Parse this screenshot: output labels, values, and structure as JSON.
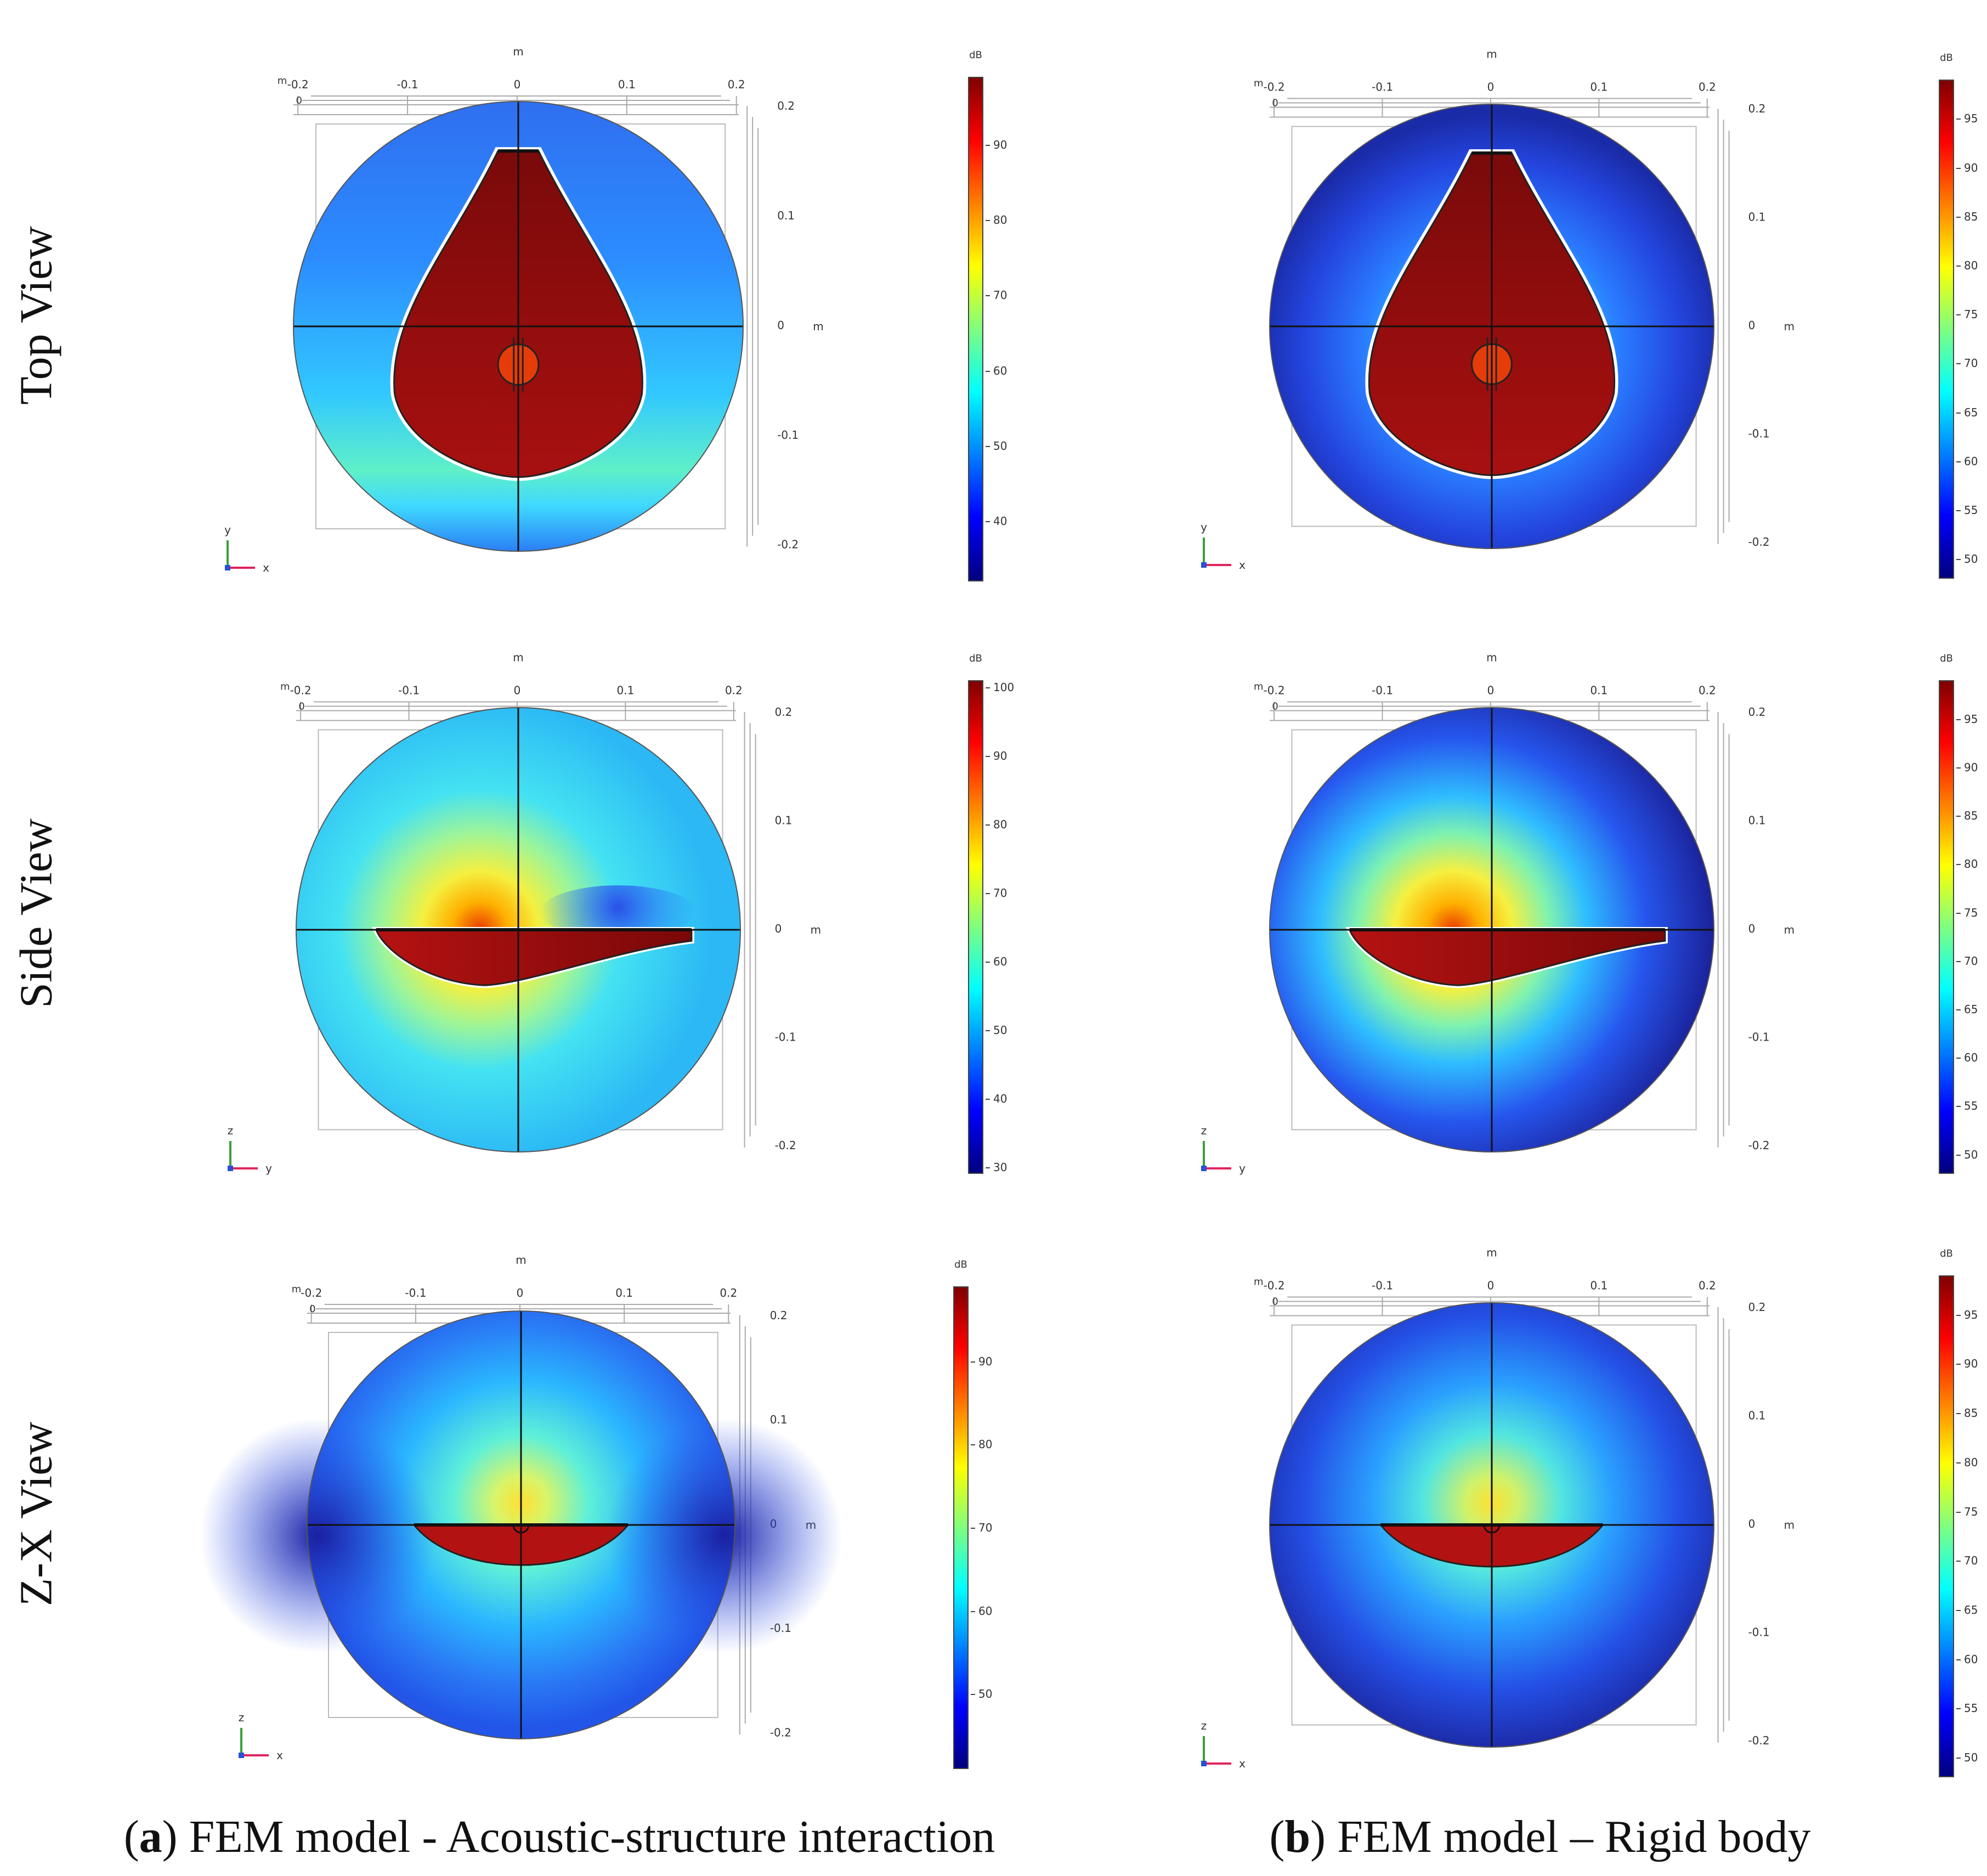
{
  "row_labels": [
    "Top View",
    "Side View",
    "Z-X View"
  ],
  "captions": [
    {
      "letter": "a",
      "text": "FEM model - Acoustic-structure interaction"
    },
    {
      "letter": "b",
      "text": "FEM model – Rigid body"
    }
  ],
  "axis_ticks": {
    "horizontal": [
      "-0.2",
      "-0.1",
      "0",
      "0.1",
      "0.2"
    ],
    "vertical": [
      "0.2",
      "0.1",
      "0",
      "-0.1",
      "-0.2"
    ],
    "unit": "m",
    "start": "0"
  },
  "colorbar_unit": "dB",
  "colorbars": {
    "a_top": [
      40,
      50,
      60,
      70,
      80,
      90
    ],
    "a_side": [
      30,
      40,
      50,
      60,
      70,
      80,
      90,
      100
    ],
    "a_zx": [
      50,
      60,
      70,
      80,
      90
    ],
    "b": [
      50,
      55,
      60,
      65,
      70,
      75,
      80,
      85,
      90,
      95
    ]
  },
  "panels": [
    {
      "id": "a-top",
      "axes": [
        "y",
        "x"
      ]
    },
    {
      "id": "a-side",
      "axes": [
        "z",
        "y"
      ]
    },
    {
      "id": "a-zx",
      "axes": [
        "z",
        "x"
      ]
    },
    {
      "id": "b-top",
      "axes": [
        "y",
        "x"
      ]
    },
    {
      "id": "b-side",
      "axes": [
        "z",
        "y"
      ]
    },
    {
      "id": "b-zx",
      "axes": [
        "z",
        "x"
      ]
    }
  ],
  "colors": {
    "body": "#8b0a0a",
    "jet": [
      "#00007f",
      "#0000ff",
      "#007fff",
      "#00ffff",
      "#7fff7f",
      "#ffff00",
      "#ff7f00",
      "#ff0000",
      "#7f0000"
    ]
  }
}
